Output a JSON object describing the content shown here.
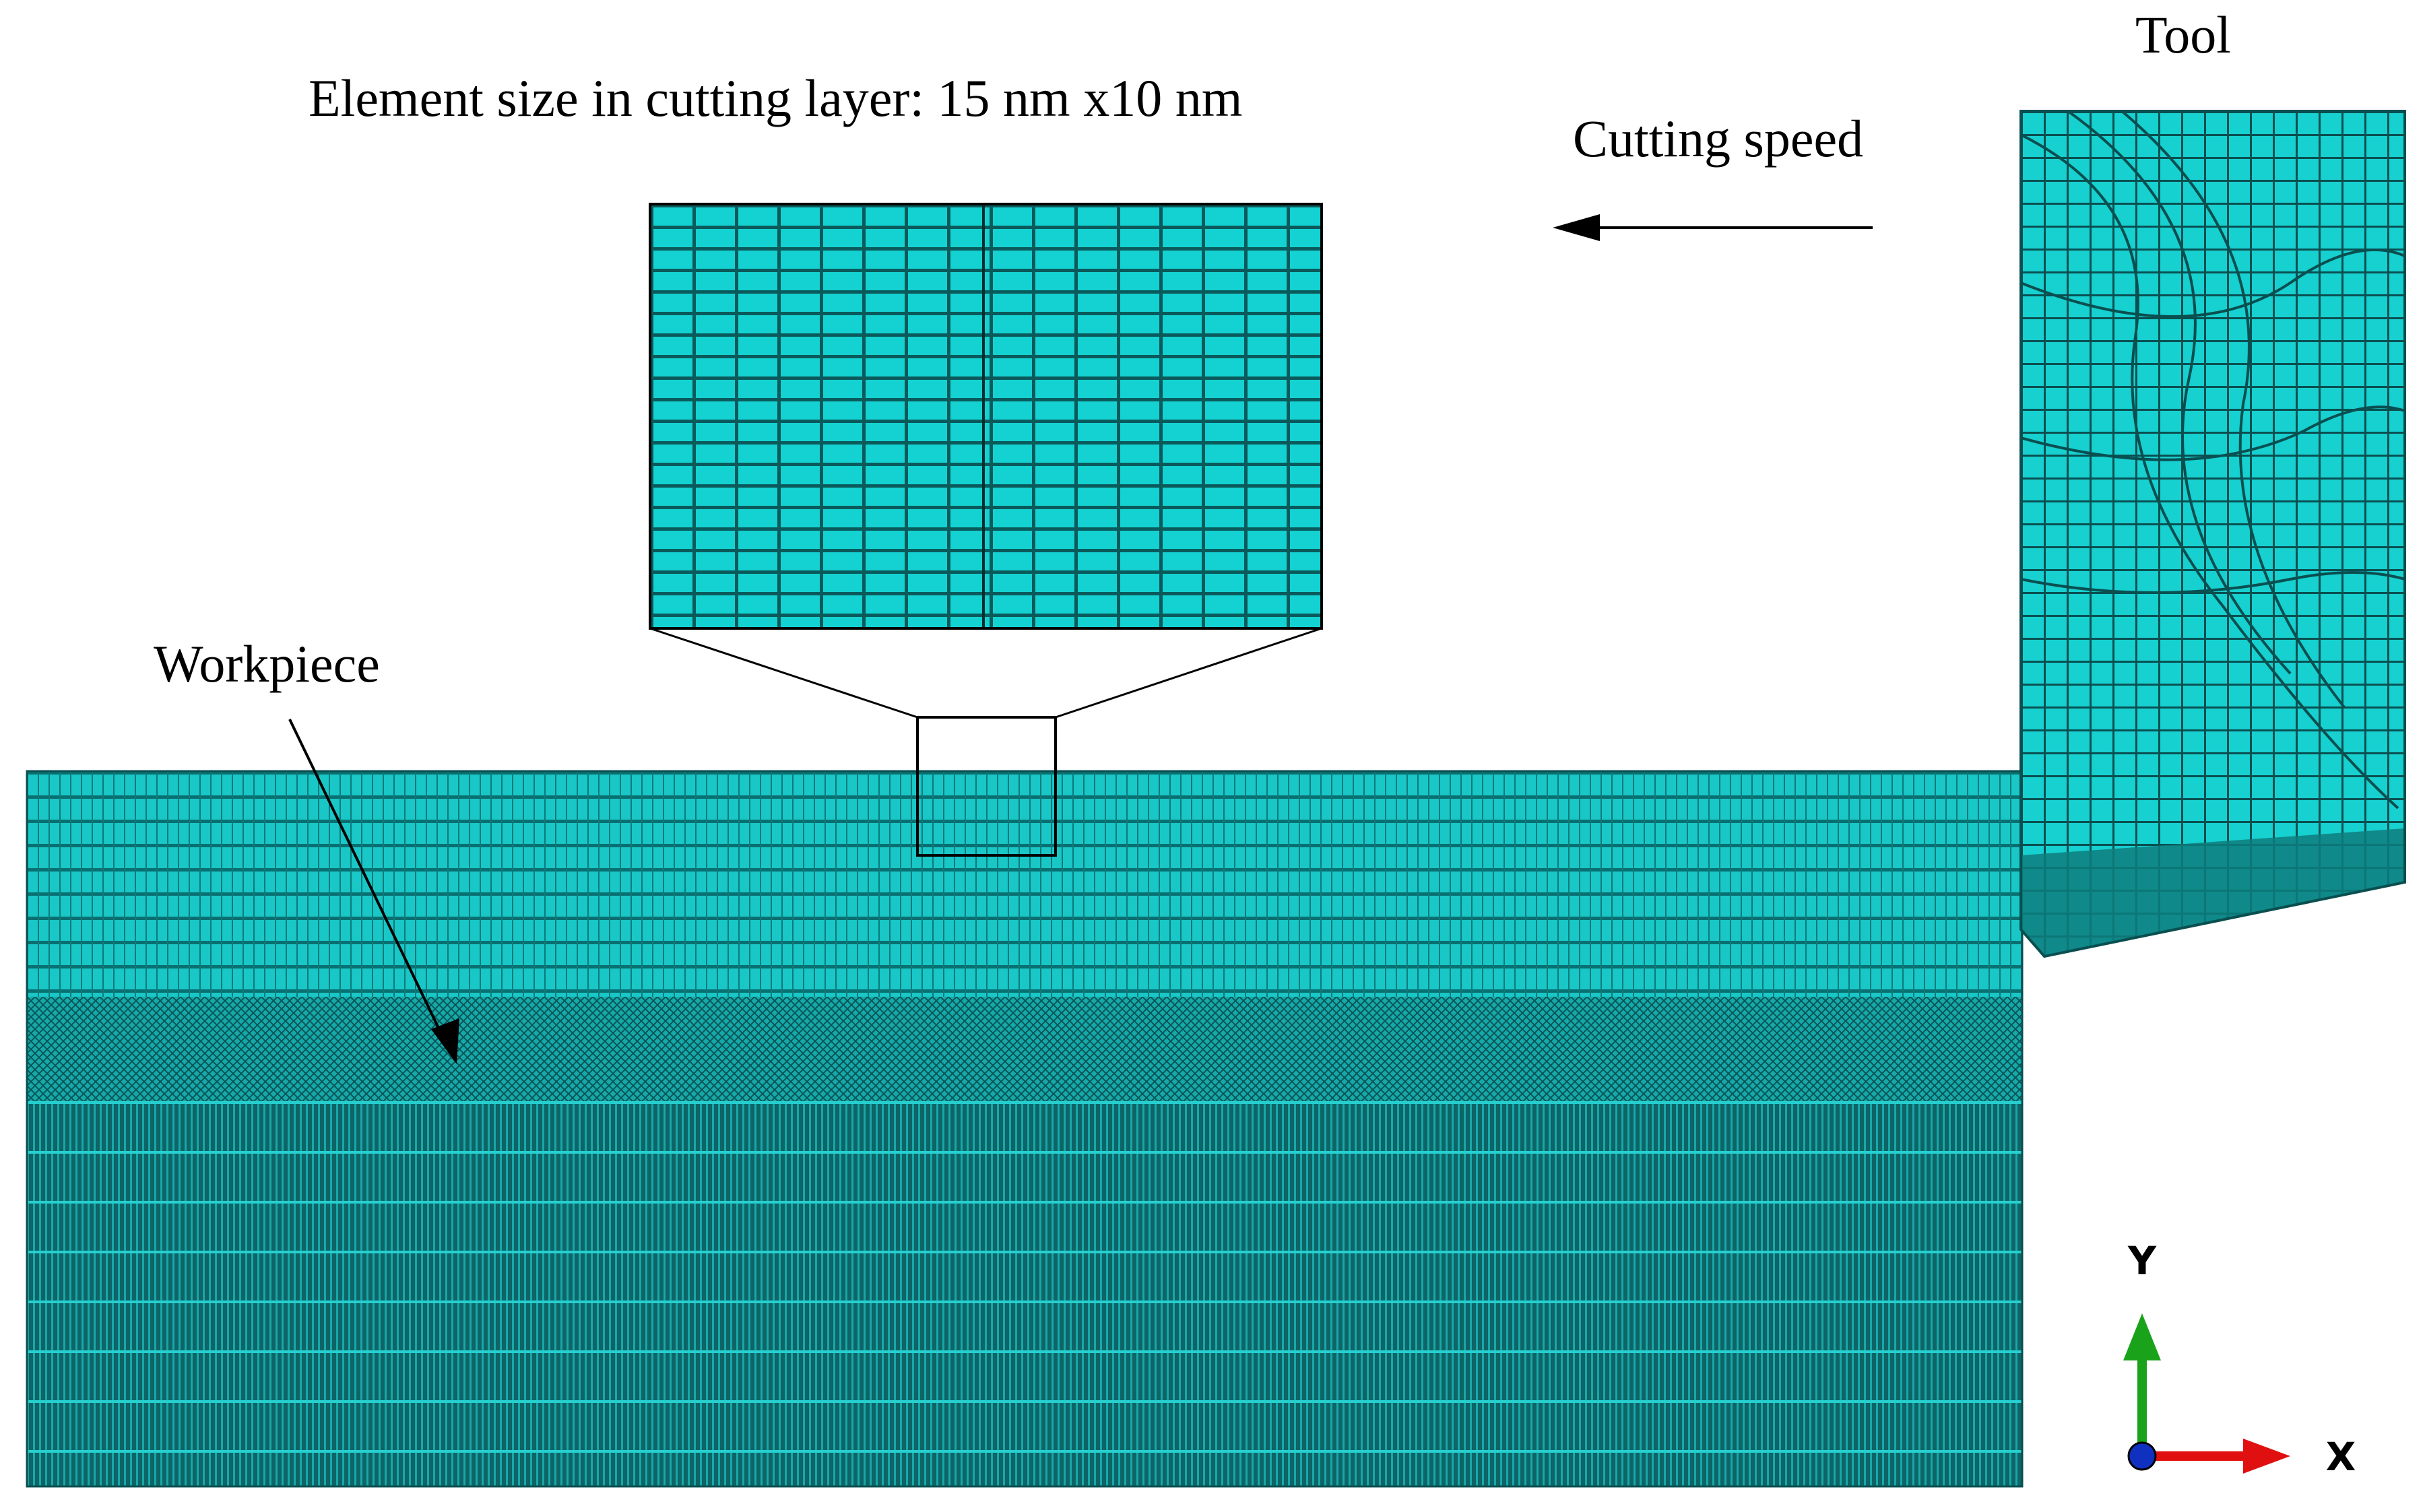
{
  "labels": {
    "element_size": "Element size in cutting layer: 15 nm x10 nm",
    "cutting_speed": "Cutting speed",
    "tool": "Tool",
    "workpiece": "Workpiece"
  },
  "triad": {
    "y_label": "Y",
    "x_label": "X"
  },
  "colors": {
    "mesh_fill": "#13cccc",
    "mesh_line": "#0a4f50",
    "dense_fill": "#0e6466",
    "y_axis": "#1aa31a",
    "x_axis": "#e01010",
    "z_axis": "#1030c0"
  }
}
